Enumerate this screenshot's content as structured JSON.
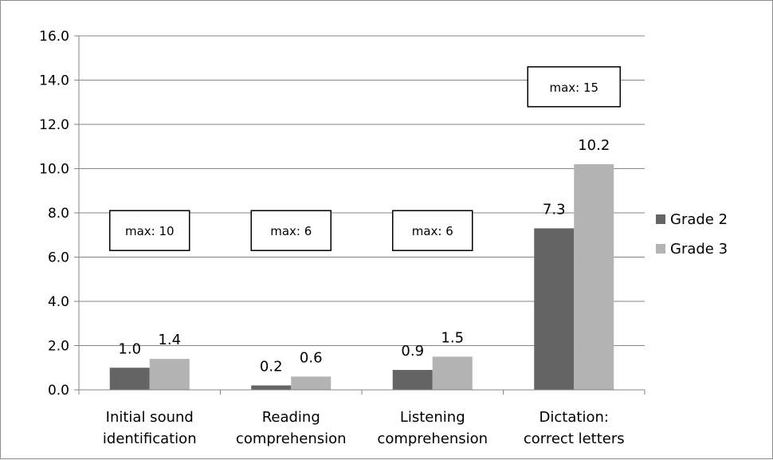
{
  "chart_data": {
    "type": "bar",
    "categories": [
      [
        "Initial sound",
        "identification"
      ],
      [
        "Reading",
        "comprehension"
      ],
      [
        "Listening",
        "comprehension"
      ],
      [
        "Dictation:",
        "correct letters"
      ]
    ],
    "series": [
      {
        "name": "Grade 2",
        "values": [
          1.0,
          0.2,
          0.9,
          7.3
        ],
        "color": "#646464"
      },
      {
        "name": "Grade 3",
        "values": [
          1.4,
          0.6,
          1.5,
          10.2
        ],
        "color": "#b3b3b3"
      }
    ],
    "ylim": [
      0,
      16
    ],
    "yticks": [
      0,
      2,
      4,
      6,
      8,
      10,
      12,
      14,
      16
    ],
    "ytick_labels": [
      "0.0",
      "2.0",
      "4.0",
      "6.0",
      "8.0",
      "10.0",
      "12.0",
      "14.0",
      "16.0"
    ],
    "data_labels": [
      [
        "1.0",
        "0.2",
        "0.9",
        "7.3"
      ],
      [
        "1.4",
        "0.6",
        "1.5",
        "10.2"
      ]
    ],
    "annotations": [
      {
        "text": "max: 10",
        "y": 7.2
      },
      {
        "text": "max: 6",
        "y": 7.2
      },
      {
        "text": "max: 6",
        "y": 7.2
      },
      {
        "text": "max: 15",
        "y": 13.7
      }
    ],
    "grid": true,
    "legend_position": "right",
    "title": "",
    "xlabel": "",
    "ylabel": ""
  }
}
